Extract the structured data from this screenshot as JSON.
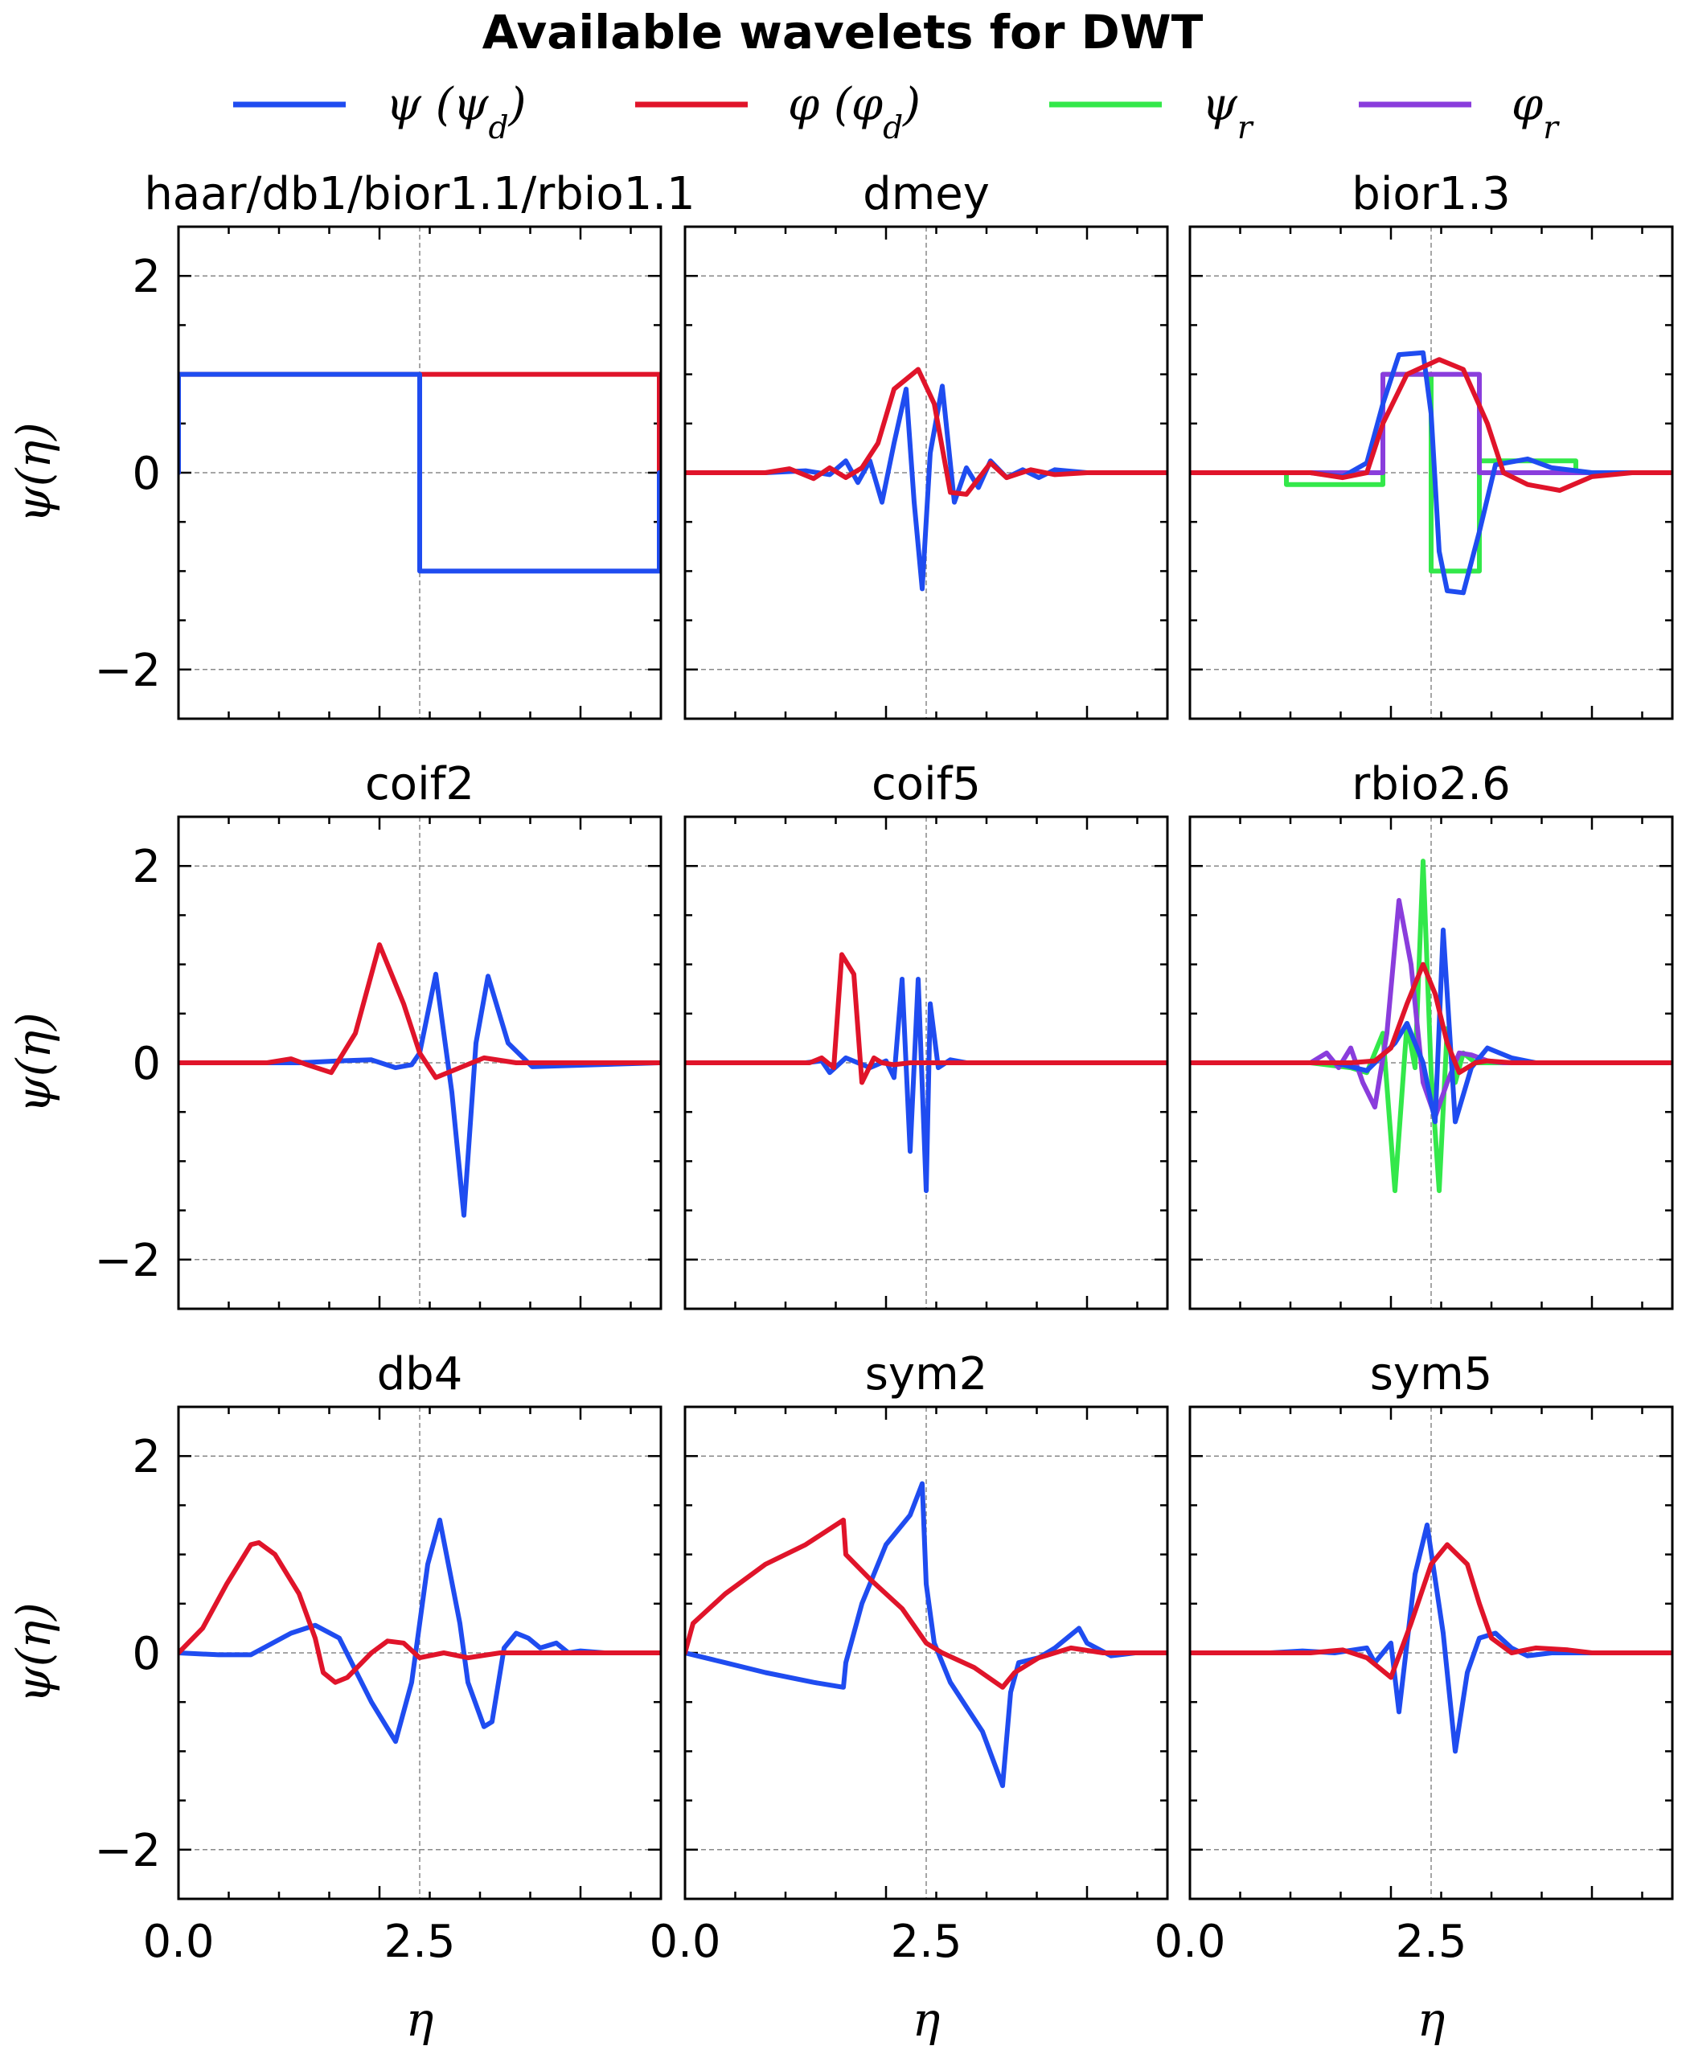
{
  "figure": {
    "title": "Available wavelets for DWT",
    "ylabel": "ψ(η)",
    "xlabel": "η",
    "xticks": [
      "0.0",
      "2.5"
    ],
    "yticks": [
      "2",
      "0",
      "−2"
    ],
    "grid": true,
    "legend_position": "top"
  },
  "legend": [
    {
      "series": "psi_d",
      "label": "ψ (ψ_d)",
      "color": "#1f4cf0"
    },
    {
      "series": "phi_d",
      "label": "φ (φ_d)",
      "color": "#e0142a"
    },
    {
      "series": "psi_r",
      "label": "ψ_r",
      "color": "#33e84a"
    },
    {
      "series": "phi_r",
      "label": "φ_r",
      "color": "#8a3ddc"
    }
  ],
  "chart_data": [
    {
      "type": "line",
      "title": "haar/db1/bior1.1/rbio1.1",
      "xlim": [
        0,
        6
      ],
      "ylim": [
        -2.5,
        2.5
      ],
      "series": [
        {
          "key": "phi_d",
          "x": [
            0,
            0,
            5.98,
            5.98
          ],
          "y": [
            0,
            1,
            1,
            0
          ]
        },
        {
          "key": "psi_d",
          "x": [
            0,
            0,
            3.0,
            3.0,
            5.98,
            5.98
          ],
          "y": [
            0,
            1,
            1,
            -1,
            -1,
            0
          ]
        }
      ]
    },
    {
      "type": "line",
      "title": "dmey",
      "xlim": [
        0,
        6
      ],
      "ylim": [
        -2.5,
        2.5
      ],
      "series": [
        {
          "key": "psi_d",
          "x": [
            0,
            1,
            1.5,
            1.8,
            2.0,
            2.15,
            2.3,
            2.45,
            2.6,
            2.75,
            2.85,
            2.95,
            3.05,
            3.2,
            3.35,
            3.5,
            3.65,
            3.8,
            4.0,
            4.2,
            4.4,
            4.6,
            5,
            5.98
          ],
          "y": [
            0,
            0,
            0.02,
            -0.02,
            0.12,
            -0.1,
            0.12,
            -0.3,
            0.3,
            0.85,
            -0.3,
            -1.18,
            0.2,
            0.88,
            -0.3,
            0.05,
            -0.15,
            0.12,
            -0.05,
            0.03,
            -0.05,
            0.03,
            0,
            0
          ]
        },
        {
          "key": "phi_d",
          "x": [
            0,
            1,
            1.3,
            1.6,
            1.8,
            2.0,
            2.2,
            2.4,
            2.6,
            2.9,
            3.1,
            3.3,
            3.5,
            3.8,
            4.0,
            4.3,
            4.6,
            5,
            5.98
          ],
          "y": [
            0,
            0,
            0.04,
            -0.06,
            0.05,
            -0.05,
            0.05,
            0.3,
            0.85,
            1.05,
            0.7,
            -0.2,
            -0.22,
            0.1,
            -0.05,
            0.03,
            -0.02,
            0,
            0
          ]
        }
      ]
    },
    {
      "type": "line",
      "title": "bior1.3",
      "xlim": [
        0,
        6
      ],
      "ylim": [
        -2.5,
        2.5
      ],
      "series": [
        {
          "key": "psi_r",
          "x": [
            0,
            1.2,
            1.2,
            2.4,
            2.4,
            3.0,
            3.0,
            3.6,
            3.6,
            4.8,
            4.8,
            5.98
          ],
          "y": [
            0,
            0,
            -0.12,
            -0.12,
            1,
            1,
            -1,
            -1,
            0.12,
            0.12,
            0,
            0
          ]
        },
        {
          "key": "phi_r",
          "x": [
            0,
            2.4,
            2.4,
            3.6,
            3.6,
            5.98
          ],
          "y": [
            0,
            0,
            1,
            1,
            0,
            0
          ]
        },
        {
          "key": "psi_d",
          "x": [
            0,
            1.5,
            1.9,
            2.2,
            2.4,
            2.6,
            2.9,
            3.0,
            3.1,
            3.2,
            3.4,
            3.6,
            3.8,
            4.2,
            4.5,
            5.0,
            5.98
          ],
          "y": [
            0,
            0,
            -0.04,
            0.1,
            0.7,
            1.2,
            1.22,
            0.6,
            -0.8,
            -1.2,
            -1.22,
            -0.6,
            0.08,
            0.14,
            0.05,
            0,
            0
          ]
        },
        {
          "key": "phi_d",
          "x": [
            0,
            1.5,
            1.9,
            2.2,
            2.4,
            2.7,
            3.1,
            3.4,
            3.7,
            3.9,
            4.2,
            4.6,
            5.0,
            5.5,
            5.98
          ],
          "y": [
            0,
            0,
            -0.05,
            0.0,
            0.5,
            1.0,
            1.15,
            1.05,
            0.5,
            0.0,
            -0.12,
            -0.18,
            -0.04,
            0,
            0
          ]
        }
      ]
    },
    {
      "type": "line",
      "title": "coif2",
      "xlim": [
        0,
        6
      ],
      "ylim": [
        -2.5,
        2.5
      ],
      "series": [
        {
          "key": "psi_d",
          "x": [
            0,
            1.5,
            2.0,
            2.4,
            2.7,
            2.9,
            3.0,
            3.2,
            3.4,
            3.55,
            3.7,
            3.85,
            4.1,
            4.4,
            5.98
          ],
          "y": [
            0,
            0,
            0.02,
            0.03,
            -0.05,
            -0.02,
            0.1,
            0.9,
            -0.3,
            -1.55,
            0.2,
            0.88,
            0.2,
            -0.04,
            0
          ]
        },
        {
          "key": "phi_d",
          "x": [
            0,
            1.0,
            1.1,
            1.4,
            1.6,
            1.9,
            2.2,
            2.5,
            2.8,
            3.0,
            3.2,
            3.5,
            3.8,
            4.2,
            4.6,
            5.98
          ],
          "y": [
            0,
            0,
            0.0,
            0.04,
            -0.02,
            -0.1,
            0.3,
            1.2,
            0.6,
            0.1,
            -0.15,
            -0.05,
            0.05,
            0.0,
            0,
            0
          ]
        }
      ]
    },
    {
      "type": "line",
      "title": "coif5",
      "xlim": [
        0,
        6
      ],
      "ylim": [
        -2.5,
        2.5
      ],
      "series": [
        {
          "key": "psi_d",
          "x": [
            0,
            1.5,
            1.7,
            1.8,
            2.0,
            2.3,
            2.5,
            2.6,
            2.7,
            2.8,
            2.9,
            3.0,
            3.05,
            3.15,
            3.3,
            3.5,
            3.7,
            5.98
          ],
          "y": [
            0,
            0,
            0.02,
            -0.1,
            0.05,
            -0.05,
            0.02,
            -0.15,
            0.85,
            -0.9,
            0.85,
            -1.3,
            0.6,
            -0.05,
            0.03,
            0,
            0,
            0
          ]
        },
        {
          "key": "phi_d",
          "x": [
            0,
            1.5,
            1.55,
            1.7,
            1.85,
            1.95,
            2.1,
            2.2,
            2.35,
            2.45,
            2.6,
            2.8,
            3.0,
            5.98
          ],
          "y": [
            0,
            0,
            0.0,
            0.05,
            -0.05,
            1.1,
            0.9,
            -0.2,
            0.05,
            0.0,
            -0.02,
            0.0,
            0,
            0
          ]
        }
      ]
    },
    {
      "type": "line",
      "title": "rbio2.6",
      "xlim": [
        0,
        6
      ],
      "ylim": [
        -2.5,
        2.5
      ],
      "series": [
        {
          "key": "psi_r",
          "x": [
            0,
            1.5,
            2.0,
            2.2,
            2.4,
            2.55,
            2.7,
            2.8,
            2.9,
            3.0,
            3.1,
            3.2,
            3.3,
            3.4,
            3.55,
            3.75,
            4.0,
            5.98
          ],
          "y": [
            0,
            0,
            -0.05,
            -0.1,
            0.3,
            -1.3,
            0.4,
            -0.05,
            2.05,
            -0.1,
            -1.3,
            0.35,
            -0.2,
            0.1,
            0,
            0,
            0,
            0
          ]
        },
        {
          "key": "phi_r",
          "x": [
            0,
            1.5,
            1.7,
            1.85,
            2.0,
            2.15,
            2.3,
            2.45,
            2.6,
            2.75,
            2.9,
            3.05,
            3.2,
            3.35,
            3.5,
            3.7,
            3.9,
            5.98
          ],
          "y": [
            0,
            0,
            0.1,
            -0.05,
            0.15,
            -0.2,
            -0.45,
            0.3,
            1.65,
            1.0,
            -0.2,
            -0.55,
            -0.2,
            0.1,
            0.08,
            0.02,
            0,
            0
          ]
        },
        {
          "key": "psi_d",
          "x": [
            0,
            1.5,
            1.8,
            2.2,
            2.55,
            2.7,
            2.9,
            3.05,
            3.15,
            3.3,
            3.5,
            3.7,
            4.0,
            4.3,
            5.98
          ],
          "y": [
            0,
            0,
            0.0,
            -0.08,
            0.2,
            0.4,
            0.0,
            -0.6,
            1.35,
            -0.6,
            -0.05,
            0.15,
            0.05,
            0,
            0
          ]
        },
        {
          "key": "phi_d",
          "x": [
            0,
            1.5,
            2.0,
            2.3,
            2.5,
            2.7,
            2.9,
            3.05,
            3.2,
            3.35,
            3.55,
            3.7,
            4.0,
            5.98
          ],
          "y": [
            0,
            0,
            0.0,
            0.02,
            0.15,
            0.6,
            1.0,
            0.7,
            0.2,
            -0.1,
            0.0,
            0.02,
            0,
            0
          ]
        }
      ]
    },
    {
      "type": "line",
      "title": "db4",
      "xlim": [
        0,
        6
      ],
      "ylim": [
        -2.5,
        2.5
      ],
      "series": [
        {
          "key": "psi_d",
          "x": [
            0,
            0.5,
            0.9,
            1.4,
            1.7,
            2.0,
            2.4,
            2.7,
            2.9,
            3.1,
            3.25,
            3.5,
            3.6,
            3.8,
            3.9,
            4.05,
            4.2,
            4.35,
            4.5,
            4.7,
            4.85,
            5.0,
            5.3,
            5.98
          ],
          "y": [
            0,
            -0.02,
            -0.02,
            0.2,
            0.28,
            0.15,
            -0.5,
            -0.9,
            -0.3,
            0.9,
            1.35,
            0.3,
            -0.3,
            -0.75,
            -0.7,
            0.05,
            0.2,
            0.15,
            0.05,
            0.1,
            0.0,
            0.02,
            0,
            0
          ]
        },
        {
          "key": "phi_d",
          "x": [
            0,
            0.3,
            0.6,
            0.9,
            1.0,
            1.2,
            1.5,
            1.7,
            1.8,
            1.95,
            2.1,
            2.4,
            2.6,
            2.8,
            3.0,
            3.3,
            3.6,
            4.0,
            5.98
          ],
          "y": [
            0,
            0.25,
            0.7,
            1.1,
            1.12,
            1.0,
            0.6,
            0.15,
            -0.2,
            -0.3,
            -0.25,
            0.0,
            0.12,
            0.1,
            -0.05,
            0.0,
            -0.05,
            0,
            0
          ]
        }
      ]
    },
    {
      "type": "line",
      "title": "sym2",
      "xlim": [
        0,
        6
      ],
      "ylim": [
        -2.5,
        2.5
      ],
      "series": [
        {
          "key": "psi_d",
          "x": [
            0,
            0.5,
            1.0,
            1.6,
            1.97,
            2.0,
            2.2,
            2.5,
            2.8,
            2.95,
            3.0,
            3.1,
            3.3,
            3.7,
            3.95,
            4.05,
            4.15,
            4.4,
            4.6,
            4.9,
            5.0,
            5.3,
            5.6,
            5.98
          ],
          "y": [
            0,
            -0.1,
            -0.2,
            -0.3,
            -0.35,
            -0.1,
            0.5,
            1.1,
            1.4,
            1.72,
            0.7,
            0.1,
            -0.3,
            -0.8,
            -1.35,
            -0.4,
            -0.1,
            -0.05,
            0.05,
            0.25,
            0.1,
            -0.03,
            0.0,
            0
          ]
        },
        {
          "key": "phi_d",
          "x": [
            0,
            0.1,
            0.5,
            1.0,
            1.5,
            1.97,
            2.0,
            2.3,
            2.7,
            3.0,
            3.2,
            3.6,
            3.95,
            4.1,
            4.4,
            4.8,
            5.2,
            5.6,
            5.98
          ],
          "y": [
            0,
            0.3,
            0.6,
            0.9,
            1.1,
            1.35,
            1.0,
            0.75,
            0.45,
            0.1,
            0.0,
            -0.15,
            -0.35,
            -0.2,
            -0.05,
            0.05,
            0.0,
            0.0,
            0
          ]
        }
      ]
    },
    {
      "type": "line",
      "title": "sym5",
      "xlim": [
        0,
        6
      ],
      "ylim": [
        -2.5,
        2.5
      ],
      "series": [
        {
          "key": "psi_d",
          "x": [
            0,
            1.0,
            1.4,
            1.8,
            2.2,
            2.3,
            2.5,
            2.6,
            2.8,
            2.95,
            3.15,
            3.3,
            3.45,
            3.6,
            3.8,
            4.0,
            4.2,
            4.5,
            5.0,
            5.98
          ],
          "y": [
            0,
            0,
            0.02,
            0.0,
            0.05,
            -0.1,
            0.1,
            -0.6,
            0.8,
            1.3,
            0.2,
            -1.0,
            -0.2,
            0.15,
            0.2,
            0.05,
            -0.03,
            0,
            0,
            0
          ]
        },
        {
          "key": "phi_d",
          "x": [
            0,
            1.0,
            1.5,
            1.9,
            2.2,
            2.5,
            2.75,
            3.0,
            3.2,
            3.45,
            3.6,
            3.75,
            4.0,
            4.3,
            4.7,
            5.0,
            5.98
          ],
          "y": [
            0,
            0,
            0.0,
            0.03,
            -0.05,
            -0.25,
            0.3,
            0.9,
            1.1,
            0.9,
            0.5,
            0.15,
            0.0,
            0.05,
            0.03,
            0,
            0
          ]
        }
      ]
    }
  ]
}
